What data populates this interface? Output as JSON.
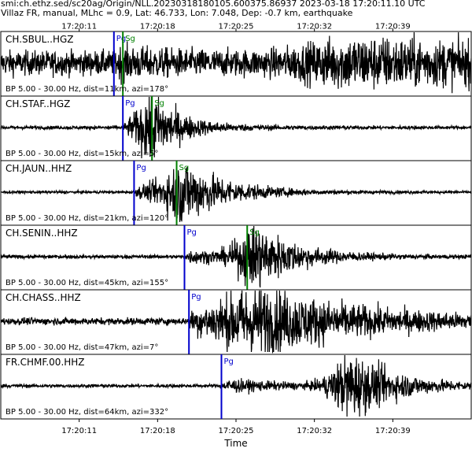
{
  "header": {
    "line1": "smi:ch.ethz.sed/sc20ag/Origin/NLL.20230318180105.600375.86937 2023-03-18 17:20:11.10 UTC",
    "line2": "Villaz FR, manual, MLhc = 0.9, Lat: 46.733, Lon: 7.048, Dep: -0.7 km, earthquake"
  },
  "chart_data": {
    "type": "line",
    "xlabel": "Time",
    "x_ticks": [
      "17:20:11",
      "17:20:18",
      "17:20:25",
      "17:20:32",
      "17:20:39"
    ],
    "x_tick_seconds": [
      11,
      18,
      25,
      32,
      39
    ],
    "xlim_seconds": [
      4.0,
      46.0
    ],
    "grid": false,
    "colors": {
      "trace": "#000000",
      "pg": "#0000cc",
      "sg": "#008000"
    },
    "panels": [
      {
        "station": "CH.SBUL..HGZ",
        "filter": "BP 5.00 - 30.00 Hz, dist=11km, azi=178°",
        "pg_time": 14.1,
        "pg_label": "Pg",
        "sg_time": 14.9,
        "sg_label": "Sg",
        "noise": 0.35,
        "peak": 0.45,
        "peak_time": 36.0,
        "decay": 25,
        "peak_width": 8
      },
      {
        "station": "CH.STAF..HGZ",
        "filter": "BP 5.00 - 30.00 Hz, dist=15km, azi=5°",
        "pg_time": 14.9,
        "pg_label": "Pg",
        "sg_time": 17.5,
        "sg_label": "Sg",
        "noise": 0.05,
        "peak": 0.95,
        "peak_time": 17.6,
        "decay": 2.2,
        "peak_width": 2
      },
      {
        "station": "CH.JAUN..HHZ",
        "filter": "BP 5.00 - 30.00 Hz, dist=21km, azi=120°",
        "pg_time": 15.9,
        "pg_label": "Pg",
        "sg_time": 19.7,
        "sg_label": "Sg",
        "noise": 0.04,
        "peak": 0.85,
        "peak_time": 20.5,
        "decay": 3.5,
        "peak_width": 3
      },
      {
        "station": "CH.SENIN..HHZ",
        "filter": "BP 5.00 - 30.00 Hz, dist=45km, azi=155°",
        "pg_time": 20.4,
        "pg_label": "Pg",
        "sg_time": 26.0,
        "sg_label": "Sg",
        "noise": 0.05,
        "peak": 0.85,
        "peak_time": 27.0,
        "decay": 3.5,
        "peak_width": 3
      },
      {
        "station": "CH.CHASS..HHZ",
        "filter": "BP 5.00 - 30.00 Hz, dist=47km, azi=7°",
        "pg_time": 20.8,
        "pg_label": "Pg",
        "sg_time": null,
        "sg_label": "",
        "noise": 0.1,
        "peak": 0.9,
        "peak_time": 27.0,
        "decay": 10,
        "peak_width": 6
      },
      {
        "station": "FR.CHMF.00.HHZ",
        "filter": "BP 5.00 - 30.00 Hz, dist=64km, azi=332°",
        "pg_time": 23.7,
        "pg_label": "Pg",
        "sg_time": null,
        "sg_label": "",
        "noise": 0.05,
        "peak": 0.9,
        "peak_time": 35.5,
        "decay": 4,
        "peak_width": 3
      }
    ]
  }
}
